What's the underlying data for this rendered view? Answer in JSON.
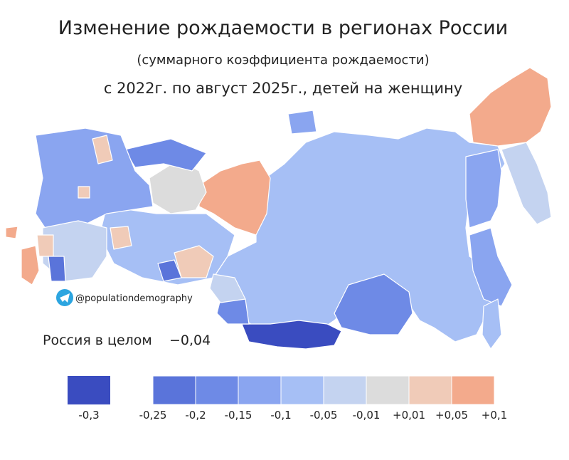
{
  "header": {
    "title": "Изменение рождаемости в регионах России",
    "subtitle": "(суммарного коэффициента рождаемости)",
    "period": "с 2022г. по август 2025г., детей на женщину"
  },
  "source": "@populationdemography",
  "summary": {
    "label": "Россия в целом",
    "value": "−0,04"
  },
  "legend": {
    "separate": {
      "color": "#3a4cc0",
      "label": "-0,3"
    },
    "colors": [
      "#5a74da",
      "#6e8ae6",
      "#8aa5f0",
      "#a6bff5",
      "#c4d3f0",
      "#dcdcdc",
      "#f0cbb8",
      "#f3aa8c"
    ],
    "labels": [
      "-0,25",
      "-0,2",
      "-0,15",
      "-0,1",
      "-0,05",
      "-0,01",
      "+0,01",
      "+0,05",
      "+0,1"
    ]
  }
}
